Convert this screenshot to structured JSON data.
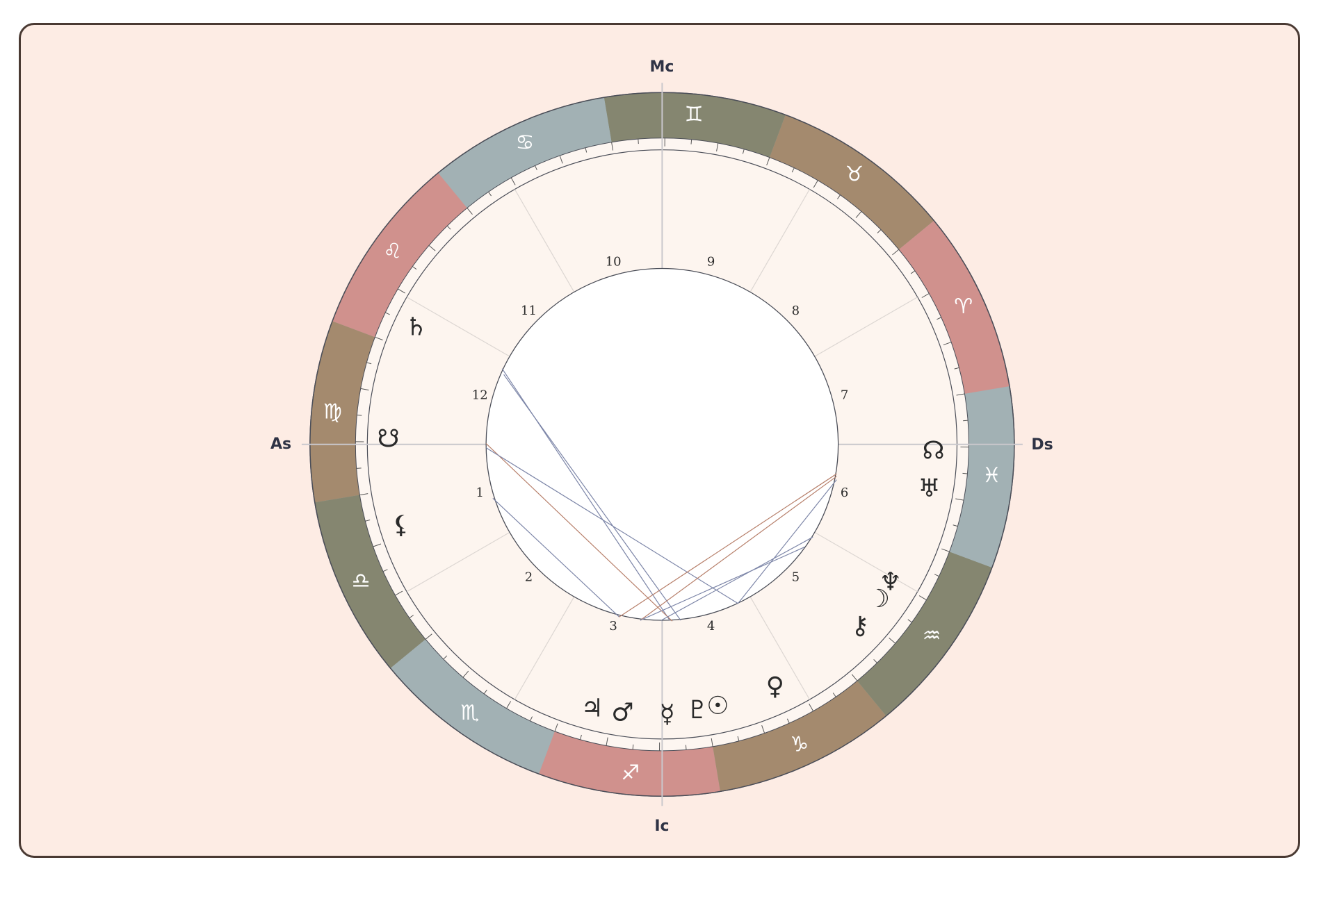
{
  "axes": {
    "mc": "Mc",
    "ic": "Ic",
    "as": "As",
    "ds": "Ds"
  },
  "signs": [
    "♈︎",
    "♉︎",
    "♊︎",
    "♋︎",
    "♌︎",
    "♍︎",
    "♎︎",
    "♏︎",
    "♐︎",
    "♑︎",
    "♒︎",
    "♓︎"
  ],
  "houses": [
    "1",
    "2",
    "3",
    "4",
    "5",
    "6",
    "7",
    "8",
    "9",
    "10",
    "11",
    "12"
  ],
  "planets": [
    "♄︎",
    "☋︎",
    "⚸︎",
    "♃︎",
    "♂︎",
    "☿︎",
    "♇︎",
    "☉︎",
    "♀︎",
    "⚷︎",
    "☽︎",
    "♆︎",
    "♅︎",
    "☊︎"
  ]
}
